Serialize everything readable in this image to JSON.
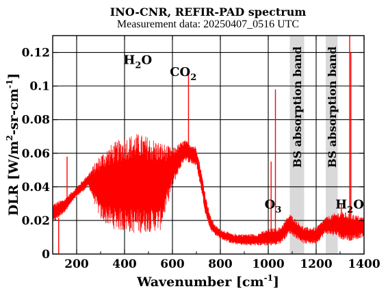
{
  "chart_data": {
    "type": "line",
    "title": "INO-CNR, REFIR-PAD spectrum",
    "subtitle": "Measurement data: 20250407_0516 UTC",
    "xlabel": "Wavenumber [cm-1]",
    "xlabel_main": "Wavenumber [cm",
    "xlabel_sup": "-1",
    "xlabel_end": "]",
    "ylabel_main": "DLR [W/m",
    "ylabel_sup1": "2",
    "ylabel_mid": "-sr-cm",
    "ylabel_sup2": "-1",
    "ylabel_end": "]",
    "xlim": [
      100,
      1400
    ],
    "ylim": [
      0,
      0.13
    ],
    "x_ticks": [
      200,
      400,
      600,
      800,
      1000,
      1200,
      1400
    ],
    "y_ticks": [
      0,
      0.02,
      0.04,
      0.06,
      0.08,
      0.1,
      0.12
    ],
    "y_tick_labels": [
      "0",
      "0.02",
      "0.04",
      "0.06",
      "0.08",
      "0.1",
      "0.12"
    ],
    "grid": true,
    "series_color": "#ff0000",
    "band_color": "#d9d9d9",
    "bands": [
      {
        "x_start": 1090,
        "x_end": 1150,
        "label": "BS absorption band"
      },
      {
        "x_start": 1240,
        "x_end": 1290,
        "label": "BS absorption band"
      }
    ],
    "annotations": [
      {
        "text": "H",
        "sub": "2",
        "tail": "O",
        "x": 455,
        "y": 0.113
      },
      {
        "text": "CO",
        "sub": "2",
        "tail": "",
        "x": 645,
        "y": 0.106
      },
      {
        "text": "O",
        "sub": "3",
        "tail": "",
        "x": 1020,
        "y": 0.027
      },
      {
        "text": "H",
        "sub": "2",
        "tail": "O",
        "x": 1340,
        "y": 0.027
      }
    ],
    "envelope": {
      "x": [
        100,
        150,
        200,
        250,
        300,
        350,
        400,
        450,
        500,
        550,
        600,
        650,
        700,
        720,
        740,
        760,
        780,
        800,
        850,
        900,
        950,
        1000,
        1050,
        1090,
        1150,
        1200,
        1240,
        1290,
        1320,
        1350,
        1400
      ],
      "base": [
        0.018,
        0.025,
        0.034,
        0.04,
        0.02,
        0.015,
        0.013,
        0.012,
        0.013,
        0.014,
        0.04,
        0.056,
        0.052,
        0.038,
        0.022,
        0.014,
        0.011,
        0.009,
        0.006,
        0.005,
        0.005,
        0.005,
        0.006,
        0.012,
        0.006,
        0.006,
        0.012,
        0.01,
        0.008,
        0.008,
        0.01
      ],
      "top": [
        0.03,
        0.033,
        0.04,
        0.048,
        0.06,
        0.066,
        0.07,
        0.072,
        0.07,
        0.067,
        0.063,
        0.068,
        0.064,
        0.05,
        0.034,
        0.022,
        0.017,
        0.015,
        0.012,
        0.012,
        0.012,
        0.015,
        0.016,
        0.024,
        0.016,
        0.016,
        0.022,
        0.025,
        0.025,
        0.024,
        0.022
      ]
    },
    "spikes": [
      {
        "x": 125,
        "y": 0.0
      },
      {
        "x": 160,
        "y": 0.058
      },
      {
        "x": 667,
        "y": 0.108
      },
      {
        "x": 1012,
        "y": 0.055
      },
      {
        "x": 1030,
        "y": 0.098
      },
      {
        "x": 1305,
        "y": 0.03
      },
      {
        "x": 1340,
        "y": 0.13
      },
      {
        "x": 1345,
        "y": 0.12
      }
    ]
  }
}
